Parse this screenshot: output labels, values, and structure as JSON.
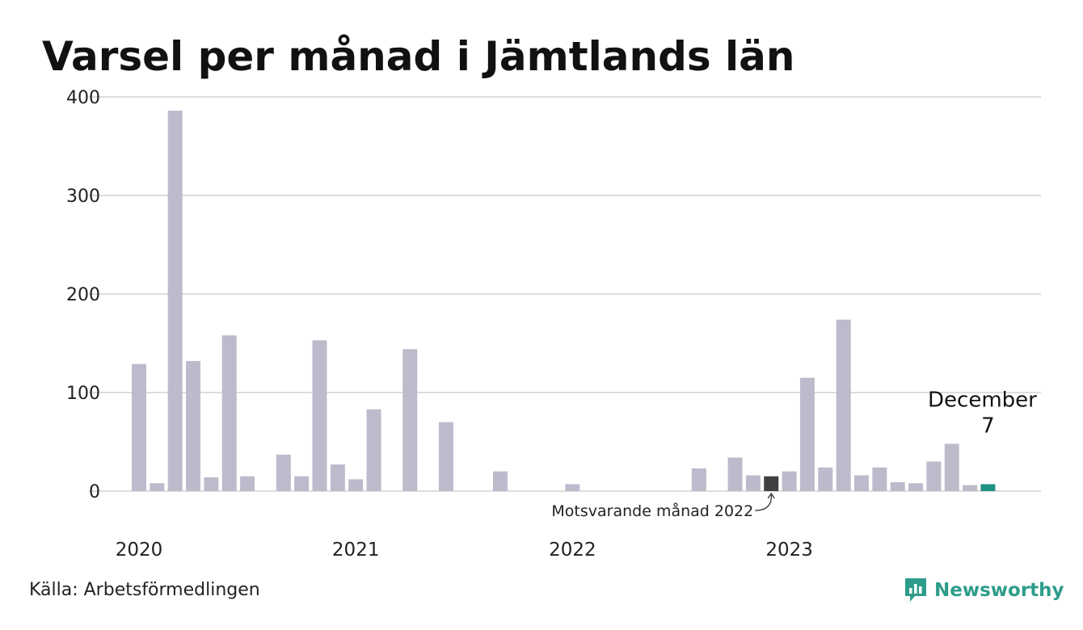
{
  "title": "Varsel per månad i Jämtlands län",
  "source": "Källa: Arbetsförmedlingen",
  "brand": {
    "name": "Newsworthy",
    "color": "#2e9c8b"
  },
  "colors": {
    "default_bar": "#bdbbcb",
    "comparison_bar": "#404040",
    "current_bar": "#1e9282",
    "grid": "#dddddd"
  },
  "annotation": {
    "text": "Motsvarande månad 2022"
  },
  "callout": {
    "label": "December",
    "value": "7"
  },
  "chart_data": {
    "type": "bar",
    "title": "Varsel per månad i Jämtlands län",
    "xlabel": "",
    "ylabel": "",
    "ylim": [
      0,
      400
    ],
    "yticks": [
      0,
      100,
      200,
      300,
      400
    ],
    "grid": true,
    "x_tick_labels": [
      {
        "label": "2020",
        "index": 0
      },
      {
        "label": "2021",
        "index": 12
      },
      {
        "label": "2022",
        "index": 24
      },
      {
        "label": "2023",
        "index": 36
      }
    ],
    "months": [
      "2020-01",
      "2020-02",
      "2020-03",
      "2020-04",
      "2020-05",
      "2020-06",
      "2020-07",
      "2020-08",
      "2020-09",
      "2020-10",
      "2020-11",
      "2020-12",
      "2021-01",
      "2021-02",
      "2021-03",
      "2021-04",
      "2021-05",
      "2021-06",
      "2021-07",
      "2021-08",
      "2021-09",
      "2021-10",
      "2021-11",
      "2021-12",
      "2022-01",
      "2022-02",
      "2022-03",
      "2022-04",
      "2022-05",
      "2022-06",
      "2022-07",
      "2022-08",
      "2022-09",
      "2022-10",
      "2022-11",
      "2022-12",
      "2023-01",
      "2023-02",
      "2023-03",
      "2023-04",
      "2023-05",
      "2023-06",
      "2023-07",
      "2023-08",
      "2023-09",
      "2023-10",
      "2023-11",
      "2023-12"
    ],
    "values": [
      129,
      8,
      386,
      132,
      14,
      158,
      15,
      0,
      37,
      15,
      153,
      27,
      12,
      83,
      0,
      144,
      0,
      70,
      0,
      0,
      20,
      0,
      0,
      0,
      7,
      0,
      0,
      0,
      0,
      0,
      0,
      23,
      0,
      34,
      16,
      15,
      20,
      115,
      24,
      174,
      16,
      24,
      9,
      8,
      30,
      48,
      6,
      7
    ],
    "highlight": {
      "comparison_index": 35,
      "current_index": 47
    }
  }
}
